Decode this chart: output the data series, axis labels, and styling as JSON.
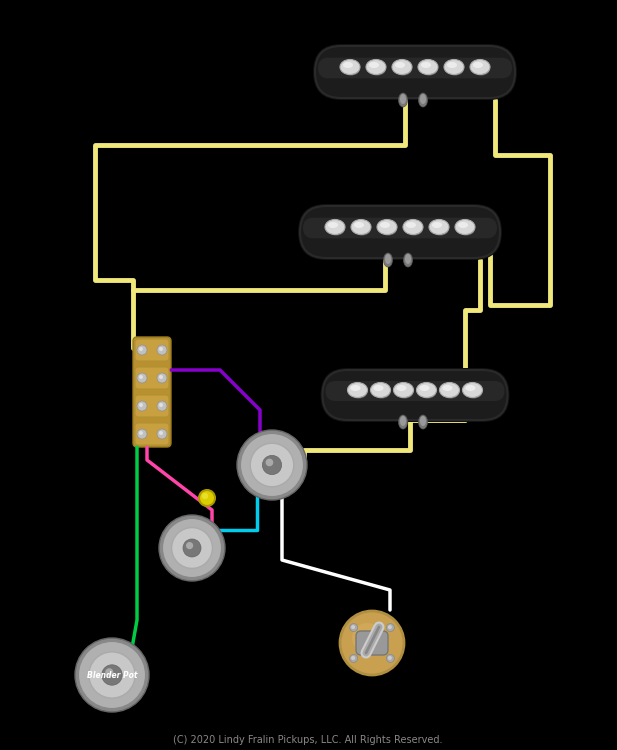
{
  "bg_color": "#000000",
  "fig_width": 6.17,
  "fig_height": 7.5,
  "dpi": 100,
  "copyright_text": "(C) 2020 Lindy Fralin Pickups, LLC. All Rights Reserved.",
  "copyright_color": "#888888",
  "copyright_fontsize": 7,
  "pickup_color": "#1a1a1a",
  "pickup_pole_color": "#e0e0e0",
  "wire_yellow": "#f0e87a",
  "wire_purple": "#8800cc",
  "wire_pink": "#ff44aa",
  "wire_green": "#00cc44",
  "wire_cyan": "#00ccee",
  "wire_white": "#ffffff",
  "pot_body_color": "#c8c8c8",
  "switch_body_color": "#c8a060",
  "tab_color": "#c8a060",
  "cap_color": "#ddcc00"
}
